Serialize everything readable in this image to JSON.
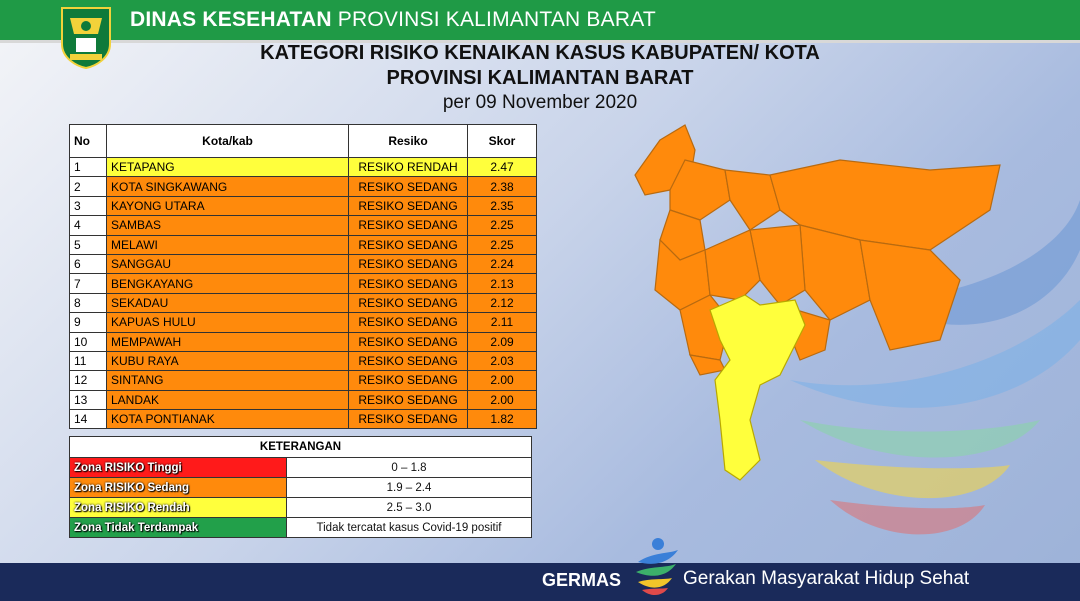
{
  "header": {
    "org_bold": "DINAS KESEHATAN",
    "org_rest": " PROVINSI KALIMANTAN BARAT"
  },
  "title": {
    "line1": "KATEGORI RISIKO KENAIKAN KASUS KABUPATEN/ KOTA",
    "line2": "PROVINSI KALIMANTAN BARAT",
    "line3": "per 09 November 2020"
  },
  "table": {
    "headers": [
      "No",
      "Kota/kab",
      "Resiko",
      "Skor"
    ],
    "rows": [
      {
        "no": "1",
        "kota": "KETAPANG",
        "resiko": "RESIKO RENDAH",
        "skor": "2.47",
        "level": "low"
      },
      {
        "no": "2",
        "kota": "KOTA SINGKAWANG",
        "resiko": "RESIKO SEDANG",
        "skor": "2.38",
        "level": "med"
      },
      {
        "no": "3",
        "kota": "KAYONG UTARA",
        "resiko": "RESIKO SEDANG",
        "skor": "2.35",
        "level": "med"
      },
      {
        "no": "4",
        "kota": "SAMBAS",
        "resiko": "RESIKO SEDANG",
        "skor": "2.25",
        "level": "med"
      },
      {
        "no": "5",
        "kota": "MELAWI",
        "resiko": "RESIKO SEDANG",
        "skor": "2.25",
        "level": "med"
      },
      {
        "no": "6",
        "kota": "SANGGAU",
        "resiko": "RESIKO SEDANG",
        "skor": "2.24",
        "level": "med"
      },
      {
        "no": "7",
        "kota": "BENGKAYANG",
        "resiko": "RESIKO SEDANG",
        "skor": "2.13",
        "level": "med"
      },
      {
        "no": "8",
        "kota": "SEKADAU",
        "resiko": "RESIKO SEDANG",
        "skor": "2.12",
        "level": "med"
      },
      {
        "no": "9",
        "kota": "KAPUAS HULU",
        "resiko": "RESIKO SEDANG",
        "skor": "2.11",
        "level": "med"
      },
      {
        "no": "10",
        "kota": "MEMPAWAH",
        "resiko": "RESIKO SEDANG",
        "skor": "2.09",
        "level": "med"
      },
      {
        "no": "11",
        "kota": "KUBU RAYA",
        "resiko": "RESIKO SEDANG",
        "skor": "2.03",
        "level": "med"
      },
      {
        "no": "12",
        "kota": "SINTANG",
        "resiko": "RESIKO SEDANG",
        "skor": "2.00",
        "level": "med"
      },
      {
        "no": "13",
        "kota": "LANDAK",
        "resiko": "RESIKO SEDANG",
        "skor": "2.00",
        "level": "med"
      },
      {
        "no": "14",
        "kota": "KOTA PONTIANAK",
        "resiko": "RESIKO SEDANG",
        "skor": "1.82",
        "level": "med"
      }
    ]
  },
  "legend": {
    "title": "KETERANGAN",
    "items": [
      {
        "label": "Zona RISIKO Tinggi",
        "range": "0 – 1.8",
        "color": "#ff1a1a"
      },
      {
        "label": "Zona RISIKO Sedang",
        "range": "1.9 – 2.4",
        "color": "#ff8a0c"
      },
      {
        "label": "Zona RISIKO Rendah",
        "range": "2.5 – 3.0",
        "color": "#ffff3c"
      },
      {
        "label": "Zona Tidak Terdampak",
        "range": "Tidak tercatat kasus Covid-19 positif",
        "color": "#22a04a"
      }
    ]
  },
  "colors": {
    "header_green": "#1f9a46",
    "footer_navy": "#1a2a5a",
    "map_orange": "#ff8a0c",
    "map_yellow": "#ffff3c"
  },
  "footer": {
    "brand": "GERMAS",
    "tagline": "Gerakan Masyarakat Hidup Sehat"
  },
  "icons": {
    "logo": "kalbar-province-emblem-icon",
    "germas_logo": "germas-figure-icon"
  }
}
